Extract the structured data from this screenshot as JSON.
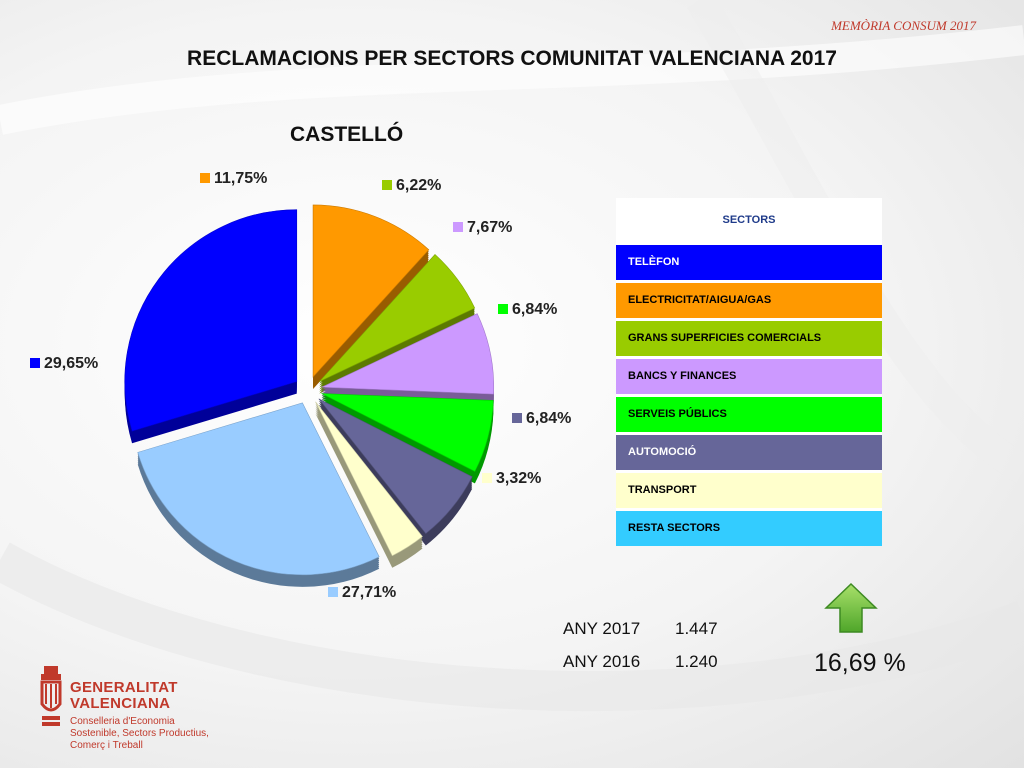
{
  "header": {
    "note": "MEMÒRIA CONSUM 2017",
    "title": "RECLAMACIONS PER SECTORS COMUNITAT VALENCIANA 2017",
    "region": "CASTELLÓ"
  },
  "legend": {
    "header": "SECTORS",
    "items": [
      {
        "label": "TELÈFON",
        "color": "#0000ff",
        "text_color": "#ffffff"
      },
      {
        "label": "ELECTRICITAT/AIGUA/GAS",
        "color": "#ff9900",
        "text_color": "#000000"
      },
      {
        "label": "GRANS SUPERFICIES COMERCIALS",
        "color": "#99cc00",
        "text_color": "#000000"
      },
      {
        "label": "BANCS Y FINANCES",
        "color": "#cc99ff",
        "text_color": "#000000"
      },
      {
        "label": "SERVEIS PÚBLICS",
        "color": "#00ff00",
        "text_color": "#000000"
      },
      {
        "label": "AUTOMOCIÓ",
        "color": "#666699",
        "text_color": "#ffffff"
      },
      {
        "label": "TRANSPORT",
        "color": "#ffffcc",
        "text_color": "#000000"
      },
      {
        "label": "RESTA SECTORS",
        "color": "#33ccff",
        "text_color": "#000000"
      }
    ]
  },
  "chart_data": {
    "type": "pie",
    "title": "CASTELLÓ",
    "style": "3d-exploded",
    "slices": [
      {
        "label": "11,75%",
        "value": 11.75,
        "color": "#ff9900"
      },
      {
        "label": "6,22%",
        "value": 6.22,
        "color": "#99cc00"
      },
      {
        "label": "7,67%",
        "value": 7.67,
        "color": "#cc99ff"
      },
      {
        "label": "6,84%",
        "value": 6.84,
        "color": "#00ff00"
      },
      {
        "label": "6,84%",
        "value": 6.84,
        "color": "#666699"
      },
      {
        "label": "3,32%",
        "value": 3.32,
        "color": "#ffffcc"
      },
      {
        "label": "27,71%",
        "value": 27.71,
        "color": "#99ccff"
      },
      {
        "label": "29,65%",
        "value": 29.65,
        "color": "#0000ff"
      }
    ]
  },
  "stats": {
    "rows": [
      {
        "year": "ANY 2017",
        "value": "1.447"
      },
      {
        "year": "ANY 2016",
        "value": "1.240"
      }
    ],
    "change": "16,69 %",
    "trend_icon": "arrow-up-icon",
    "trend_color": "#66cc33"
  },
  "logo": {
    "name_line1": "GENERALITAT",
    "name_line2": "VALENCIANA",
    "dept_line1": "Conselleria d'Economia",
    "dept_line2": "Sostenible, Sectors Productius,",
    "dept_line3": "Comerç i Treball",
    "color": "#c0392b"
  }
}
